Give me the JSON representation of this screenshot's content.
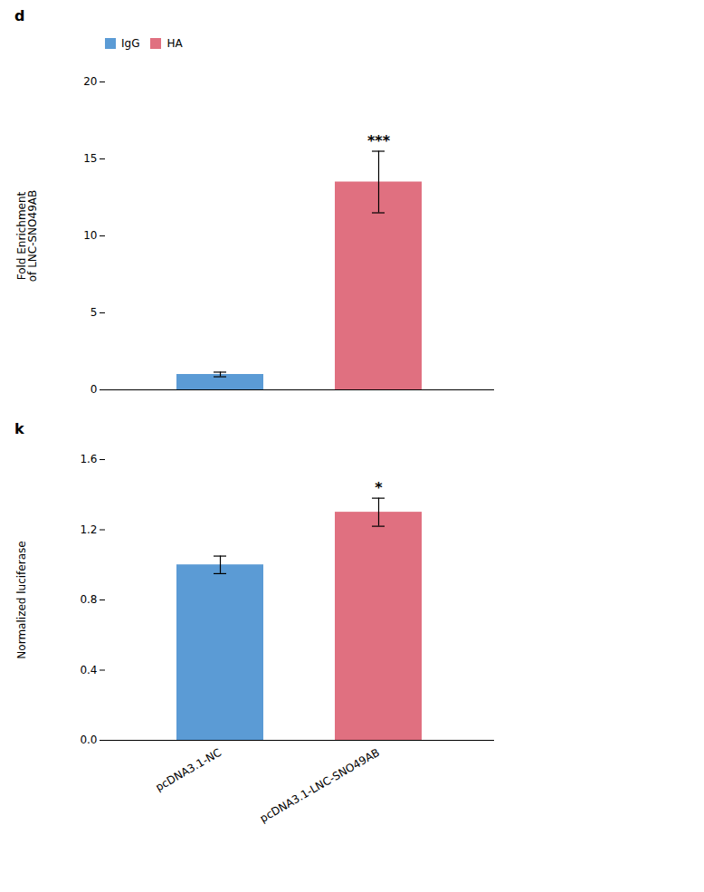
{
  "chart_data": [
    {
      "type": "bar",
      "title": "d",
      "categories": [
        "IgG",
        "HA"
      ],
      "values": [
        1.0,
        13.5
      ],
      "errors": [
        0.15,
        2.0
      ],
      "colors": [
        "#5B9BD5",
        "#E07080"
      ],
      "ylabel": "Fold Enrichment\nof LNC-SNO49AB",
      "ylim": [
        0,
        20
      ],
      "yticks": [
        0,
        5,
        10,
        15,
        20
      ],
      "legend": "upper left",
      "tick_labels": "y",
      "annotations": [
        {
          "text": "***",
          "category": "HA"
        }
      ]
    },
    {
      "type": "bar",
      "title": "k",
      "categories": [
        "pcDNA3.1-NC",
        "pcDNA3.1-LNC-SNO49AB"
      ],
      "values": [
        1.0,
        1.3
      ],
      "errors": [
        0.05,
        0.08
      ],
      "colors": [
        "#5B9BD5",
        "#E07080"
      ],
      "ylabel": "Normalized luciferase",
      "ylim": [
        0,
        1.6
      ],
      "yticks": [
        {
          "value": 0.0,
          "label": "0.0"
        },
        0.4,
        0.8,
        1.2,
        1.6
      ],
      "annotations": [
        {
          "text": "*",
          "category": "pcDNA3.1-LNC-SNO49AB"
        }
      ]
    }
  ]
}
